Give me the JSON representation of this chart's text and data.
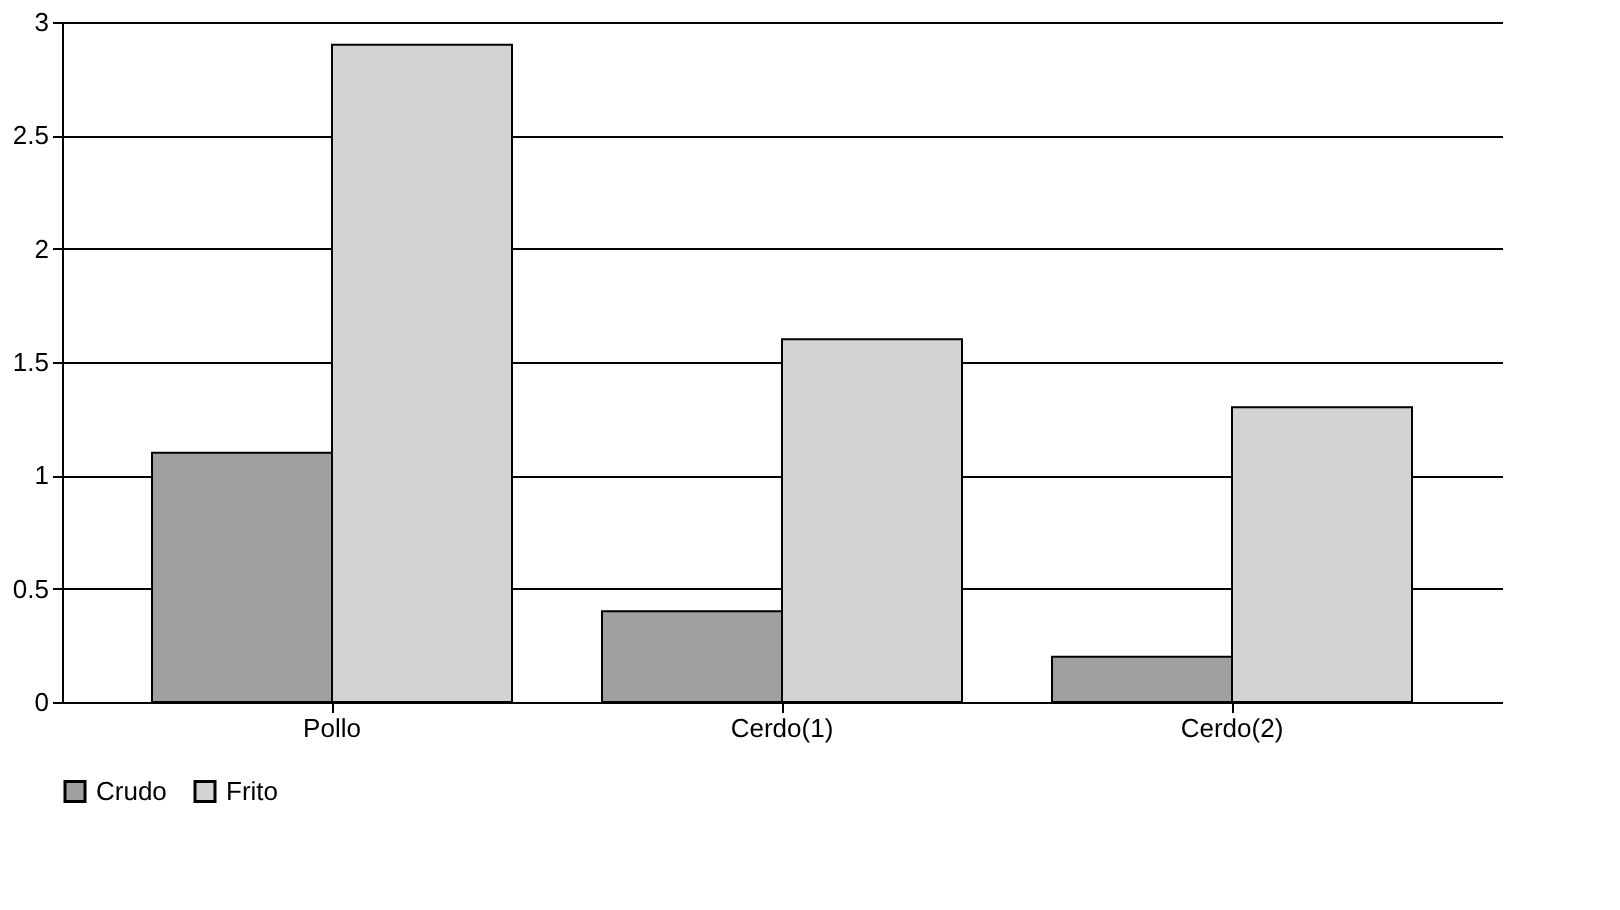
{
  "chart_data": {
    "type": "bar",
    "categories": [
      "Pollo",
      "Cerdo(1)",
      "Cerdo(2)"
    ],
    "series": [
      {
        "name": "Crudo",
        "color": "#a0a0a0",
        "values": [
          1.1,
          0.4,
          0.2
        ]
      },
      {
        "name": "Frito",
        "color": "#d3d3d3",
        "values": [
          2.9,
          1.6,
          1.3
        ]
      }
    ],
    "ylim": [
      0,
      3
    ],
    "yticks": [
      0,
      0.5,
      1,
      1.5,
      2,
      2.5,
      3
    ],
    "grid": "y",
    "legend": "bottom"
  }
}
